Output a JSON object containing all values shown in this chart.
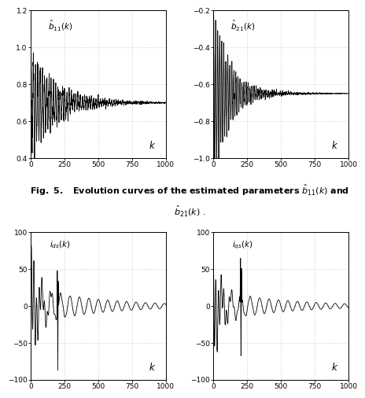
{
  "plot1": {
    "label": "$\\hat{b}_{11}(k)$",
    "xlabel": "$k$",
    "ylim": [
      0.4,
      1.2
    ],
    "xlim": [
      0,
      1000
    ],
    "yticks": [
      0.4,
      0.6,
      0.8,
      1.0,
      1.2
    ],
    "xticks": [
      0,
      250,
      500,
      750,
      1000
    ],
    "color": "black",
    "linewidth": 0.6
  },
  "plot2": {
    "label": "$\\hat{b}_{21}(k)$",
    "xlabel": "$k$",
    "ylim": [
      -1.0,
      -0.2
    ],
    "xlim": [
      0,
      1000
    ],
    "yticks": [
      -1.0,
      -0.8,
      -0.6,
      -0.4,
      -0.2
    ],
    "xticks": [
      0,
      250,
      500,
      750,
      1000
    ],
    "color": "black",
    "linewidth": 0.6
  },
  "plot3": {
    "label": "$i_{ds}(k)$",
    "xlabel": "$k$",
    "ylim": [
      -100,
      100
    ],
    "xlim": [
      0,
      1000
    ],
    "yticks": [
      -100,
      -50,
      0,
      50,
      100
    ],
    "xticks": [
      0,
      250,
      500,
      750,
      1000
    ],
    "color": "black",
    "linewidth": 0.6
  },
  "plot4": {
    "label": "$i_{qs}(k)$",
    "xlabel": "$k$",
    "ylim": [
      -100,
      100
    ],
    "xlim": [
      0,
      1000
    ],
    "yticks": [
      -100,
      -50,
      0,
      50,
      100
    ],
    "xticks": [
      0,
      250,
      500,
      750,
      1000
    ],
    "color": "black",
    "linewidth": 0.6
  },
  "caption_bold": "Fig. 5.",
  "caption_rest": "   Evolution curves of the estimated parameters ",
  "caption_math1": "$\\hat{b}_{11}(k)$",
  "caption_and": " and",
  "caption_math2": "$\\hat{b}_{21}(k)$",
  "caption_dot": " .",
  "background": "#ffffff",
  "grid_color": "#bbbbbb",
  "grid_linestyle": ":",
  "grid_linewidth": 0.5,
  "label_fontsize": 7.5,
  "tick_fontsize": 6.5,
  "caption_fontsize": 8
}
